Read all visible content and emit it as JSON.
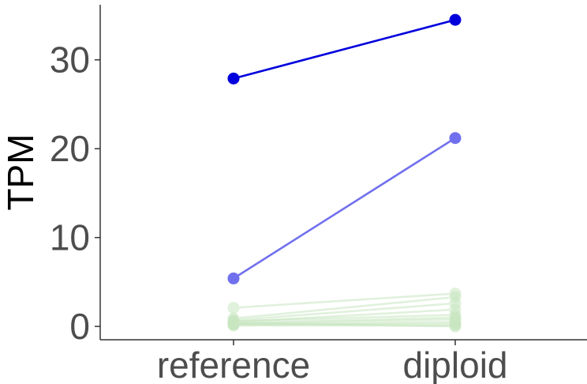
{
  "chart_data": {
    "type": "line",
    "title": "",
    "xlabel": "",
    "ylabel": "TPM",
    "categories": [
      "reference",
      "diploid"
    ],
    "ylim": [
      -1.5,
      36.2
    ],
    "yticks": [
      0,
      10,
      20,
      30
    ],
    "grid": false,
    "legend": "none",
    "series": [
      {
        "values": [
          27.9,
          34.5
        ],
        "color": "#0000dd",
        "opacity": 1.0
      },
      {
        "values": [
          5.4,
          21.2
        ],
        "color": "#7070ee",
        "opacity": 1.0
      },
      {
        "values": [
          2.1,
          3.7
        ],
        "color": "#c8e6c0",
        "opacity": 0.55
      },
      {
        "values": [
          0.9,
          3.3
        ],
        "color": "#c8e6c0",
        "opacity": 0.55
      },
      {
        "values": [
          0.7,
          2.6
        ],
        "color": "#c8e6c0",
        "opacity": 0.55
      },
      {
        "values": [
          0.5,
          1.9
        ],
        "color": "#c8e6c0",
        "opacity": 0.55
      },
      {
        "values": [
          0.6,
          1.3
        ],
        "color": "#c8e6c0",
        "opacity": 0.55
      },
      {
        "values": [
          0.4,
          1.0
        ],
        "color": "#c8e6c0",
        "opacity": 0.55
      },
      {
        "values": [
          0.3,
          0.8
        ],
        "color": "#c8e6c0",
        "opacity": 0.55
      },
      {
        "values": [
          0.2,
          0.5
        ],
        "color": "#c8e6c0",
        "opacity": 0.55
      },
      {
        "values": [
          0.2,
          0.3
        ],
        "color": "#c8e6c0",
        "opacity": 0.55
      },
      {
        "values": [
          0.1,
          0.1
        ],
        "color": "#c8e6c0",
        "opacity": 0.55
      },
      {
        "values": [
          0.4,
          0.0
        ],
        "color": "#c8e6c0",
        "opacity": 0.55
      }
    ]
  }
}
